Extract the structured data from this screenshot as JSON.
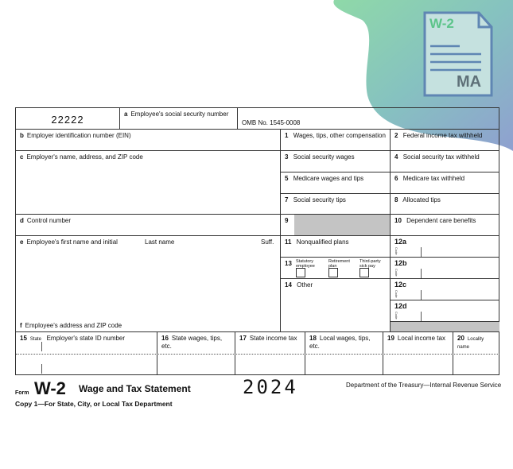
{
  "badge": {
    "title": "W-2",
    "state": "MA",
    "colors": {
      "green": "#5cc48a",
      "blue": "#5f86b3",
      "gray_text": "#5e7078"
    }
  },
  "form": {
    "control_code": "22222",
    "a": {
      "letter": "a",
      "label": "Employee's social security number"
    },
    "omb": "OMB No. 1545-0008",
    "b": {
      "letter": "b",
      "label": "Employer identification number (EIN)"
    },
    "c": {
      "letter": "c",
      "label": "Employer's name, address, and ZIP code"
    },
    "d": {
      "letter": "d",
      "label": "Control number"
    },
    "e": {
      "letter": "e",
      "label": "Employee's first name and initial",
      "last": "Last name",
      "suff": "Suff."
    },
    "f": {
      "letter": "f",
      "label": "Employee's address and ZIP code"
    },
    "boxes": [
      {
        "n": "1",
        "label": "Wages, tips, other compensation"
      },
      {
        "n": "2",
        "label": "Federal income tax withheld"
      },
      {
        "n": "3",
        "label": "Social security wages"
      },
      {
        "n": "4",
        "label": "Social security tax withheld"
      },
      {
        "n": "5",
        "label": "Medicare wages and tips"
      },
      {
        "n": "6",
        "label": "Medicare tax withheld"
      },
      {
        "n": "7",
        "label": "Social security tips"
      },
      {
        "n": "8",
        "label": "Allocated tips"
      },
      {
        "n": "9",
        "label": ""
      },
      {
        "n": "10",
        "label": "Dependent care benefits"
      },
      {
        "n": "11",
        "label": "Nonqualified plans"
      },
      {
        "n": "13",
        "label": ""
      },
      {
        "n": "14",
        "label": "Other"
      }
    ],
    "box13": [
      "Statutory employee",
      "Retirement plan",
      "Third-party sick pay"
    ],
    "box12": [
      "12a",
      "12b",
      "12c",
      "12d"
    ],
    "code_label": "Code",
    "state_cols": [
      {
        "n": "15",
        "label": "State",
        "label2": "Employer's state ID number"
      },
      {
        "n": "16",
        "label": "State wages, tips, etc."
      },
      {
        "n": "17",
        "label": "State income tax"
      },
      {
        "n": "18",
        "label": "Local wages, tips, etc."
      },
      {
        "n": "19",
        "label": "Local income tax"
      },
      {
        "n": "20",
        "label": "Locality name"
      }
    ]
  },
  "footer": {
    "form_word": "Form",
    "form_name": "W-2",
    "title": "Wage and Tax Statement",
    "year": "2024",
    "dept": "Department of the Treasury—Internal Revenue Service",
    "copy": "Copy 1—For State, City, or Local Tax Department"
  }
}
